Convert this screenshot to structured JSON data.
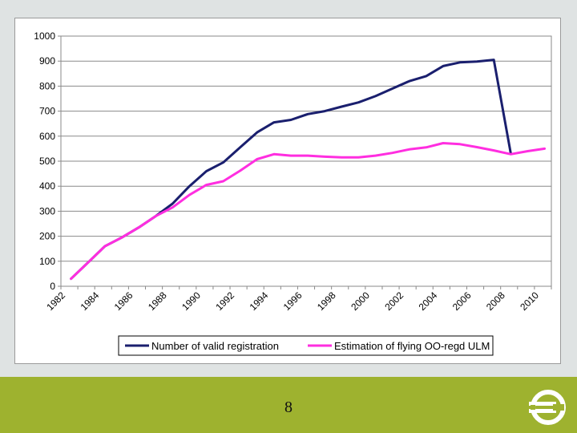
{
  "chart_data": {
    "type": "line",
    "title": "",
    "xlabel": "",
    "ylabel": "",
    "ylim": [
      0,
      1000
    ],
    "yticks": [
      "0",
      "100",
      "200",
      "300",
      "400",
      "500",
      "600",
      "700",
      "800",
      "900",
      "1000"
    ],
    "xlim": [
      1982,
      2011
    ],
    "xticks": [
      "1982",
      "1984",
      "1986",
      "1988",
      "1990",
      "1992",
      "1994",
      "1996",
      "1998",
      "2000",
      "2002",
      "2004",
      "2006",
      "2008",
      "2010"
    ],
    "grid": true,
    "legend_position": "bottom",
    "series": [
      {
        "name": "Number of valid registration",
        "color": "#1a1f6e",
        "x": [
          1982.6,
          1983.6,
          1984.6,
          1985.6,
          1986.6,
          1987.6,
          1988.6,
          1989.6,
          1990.6,
          1991.6,
          1992.6,
          1993.6,
          1994.6,
          1995.6,
          1996.6,
          1997.6,
          1998.6,
          1999.6,
          2000.6,
          2001.6,
          2002.6,
          2003.6,
          2004.6,
          2005.6,
          2006.6,
          2007.6,
          2008.6
        ],
        "values": [
          30,
          95,
          160,
          195,
          235,
          280,
          330,
          400,
          460,
          495,
          555,
          615,
          655,
          665,
          688,
          700,
          718,
          735,
          760,
          790,
          820,
          840,
          880,
          895,
          898,
          905,
          530
        ]
      },
      {
        "name": "Estimation of flying OO-regd ULM",
        "color": "#ff2ee0",
        "x": [
          1982.6,
          1983.6,
          1984.6,
          1985.6,
          1986.6,
          1987.6,
          1988.6,
          1989.6,
          1990.6,
          1991.6,
          1992.6,
          1993.6,
          1994.6,
          1995.6,
          1996.6,
          1997.6,
          1998.6,
          1999.6,
          2000.6,
          2001.6,
          2002.6,
          2003.6,
          2004.6,
          2005.6,
          2006.6,
          2007.6,
          2008.6,
          2009.6,
          2010.6
        ],
        "values": [
          30,
          95,
          160,
          195,
          235,
          280,
          315,
          365,
          405,
          420,
          462,
          508,
          528,
          522,
          522,
          518,
          515,
          515,
          522,
          533,
          547,
          555,
          572,
          568,
          556,
          543,
          528,
          540,
          550
        ]
      }
    ]
  },
  "footer": {
    "page_number": "8",
    "bar_color": "#9eb22f"
  },
  "logo": {
    "name": "euro-e-logo-icon"
  }
}
